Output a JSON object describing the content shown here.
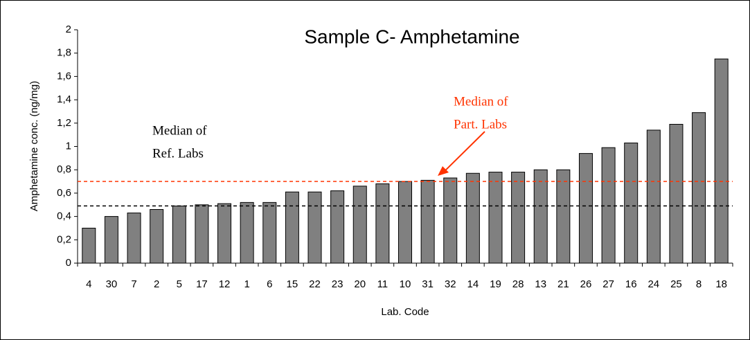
{
  "chart_data": {
    "type": "bar",
    "title": "Sample C- Amphetamine",
    "x_label": "Lab. Code",
    "y_label": "Amphetamine conc. (ng/mg)",
    "categories": [
      "4",
      "30",
      "7",
      "2",
      "5",
      "17",
      "12",
      "1",
      "6",
      "15",
      "22",
      "23",
      "20",
      "11",
      "10",
      "31",
      "32",
      "14",
      "19",
      "28",
      "13",
      "21",
      "26",
      "27",
      "16",
      "24",
      "25",
      "8",
      "18"
    ],
    "values": [
      0.3,
      0.4,
      0.43,
      0.46,
      0.49,
      0.5,
      0.51,
      0.52,
      0.52,
      0.61,
      0.61,
      0.62,
      0.66,
      0.68,
      0.7,
      0.71,
      0.73,
      0.77,
      0.78,
      0.78,
      0.8,
      0.8,
      0.94,
      0.99,
      1.03,
      1.14,
      1.19,
      1.29,
      1.75
    ],
    "color": "#808080",
    "ylim": [
      0,
      2
    ],
    "yticks": [
      0,
      {
        "value": 0.2,
        "label": "0,2"
      },
      {
        "value": 0.4,
        "label": "0,4"
      },
      {
        "value": 0.6,
        "label": "0,6"
      },
      {
        "value": 0.8,
        "label": "0,8"
      },
      1,
      {
        "value": 1.2,
        "label": "1,2"
      },
      {
        "value": 1.4,
        "label": "1,4"
      },
      {
        "value": 1.6,
        "label": "1,6"
      },
      {
        "value": 1.8,
        "label": "1,8"
      },
      2
    ],
    "reference_lines": [
      {
        "value": 0.49,
        "color": "#000000",
        "text": [
          "Median of",
          "Ref. Labs"
        ]
      },
      {
        "value": 0.7,
        "color": "#ff3300",
        "text": [
          "Median of",
          "Part. Labs"
        ]
      }
    ]
  }
}
